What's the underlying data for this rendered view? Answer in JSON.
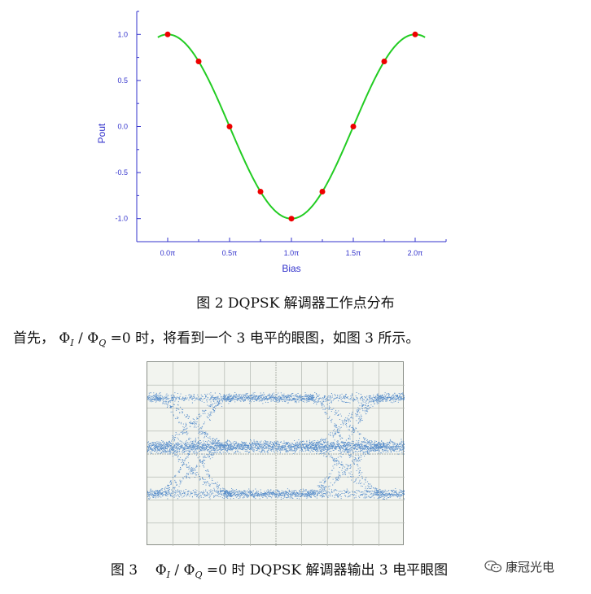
{
  "chart_data": {
    "type": "line",
    "xlabel": "Bias",
    "ylabel": "Pout",
    "xlim_pi": [
      -0.25,
      2.25
    ],
    "ylim": [
      -1.25,
      1.25
    ],
    "x_ticks_pi": [
      0,
      0.5,
      1.0,
      1.5,
      2.0
    ],
    "x_tick_labels": [
      "0.0π",
      "0.5π",
      "1.0π",
      "1.5π",
      "2.0π"
    ],
    "y_ticks": [
      1.0,
      0.5,
      0.0,
      -0.5,
      -1.0
    ],
    "y_tick_labels": [
      "1.0",
      "0.5",
      "0.0",
      "-0.5",
      "-1.0"
    ],
    "curve": {
      "function": "cos",
      "x_range_pi": [
        -0.08,
        2.08
      ],
      "color": "#22cc22"
    },
    "points": {
      "x_pi": [
        0,
        0.25,
        0.5,
        0.75,
        1.0,
        1.25,
        1.5,
        1.75,
        2.0
      ],
      "y": [
        1.0,
        0.707,
        0.0,
        -0.707,
        -1.0,
        -0.707,
        0.0,
        0.707,
        1.0
      ],
      "color": "#ee0000"
    },
    "axis_color": "#3333cc"
  },
  "fig2_caption": "图 2 DQPSK 解调器工作点分布",
  "paragraph": {
    "before": "首先，",
    "phi": "Φ",
    "sub_i": "I",
    "slash": " / ",
    "sub_q": "Q",
    "after": " =0 时，将看到一个 3 电平的眼图，如图 3 所示。"
  },
  "eye_diagram": {
    "levels": 3,
    "trace_color": "#2a6fbf",
    "grid_color": "#b9bdb6"
  },
  "fig3_caption": {
    "prefix": "图 3",
    "phi": "Φ",
    "sub_i": "I",
    "slash": " / ",
    "sub_q": "Q",
    "suffix": " =0 时 DQPSK 解调器输出 3 电平眼图"
  },
  "watermark": {
    "icon": "wechat-icon",
    "text": "康冠光电"
  }
}
